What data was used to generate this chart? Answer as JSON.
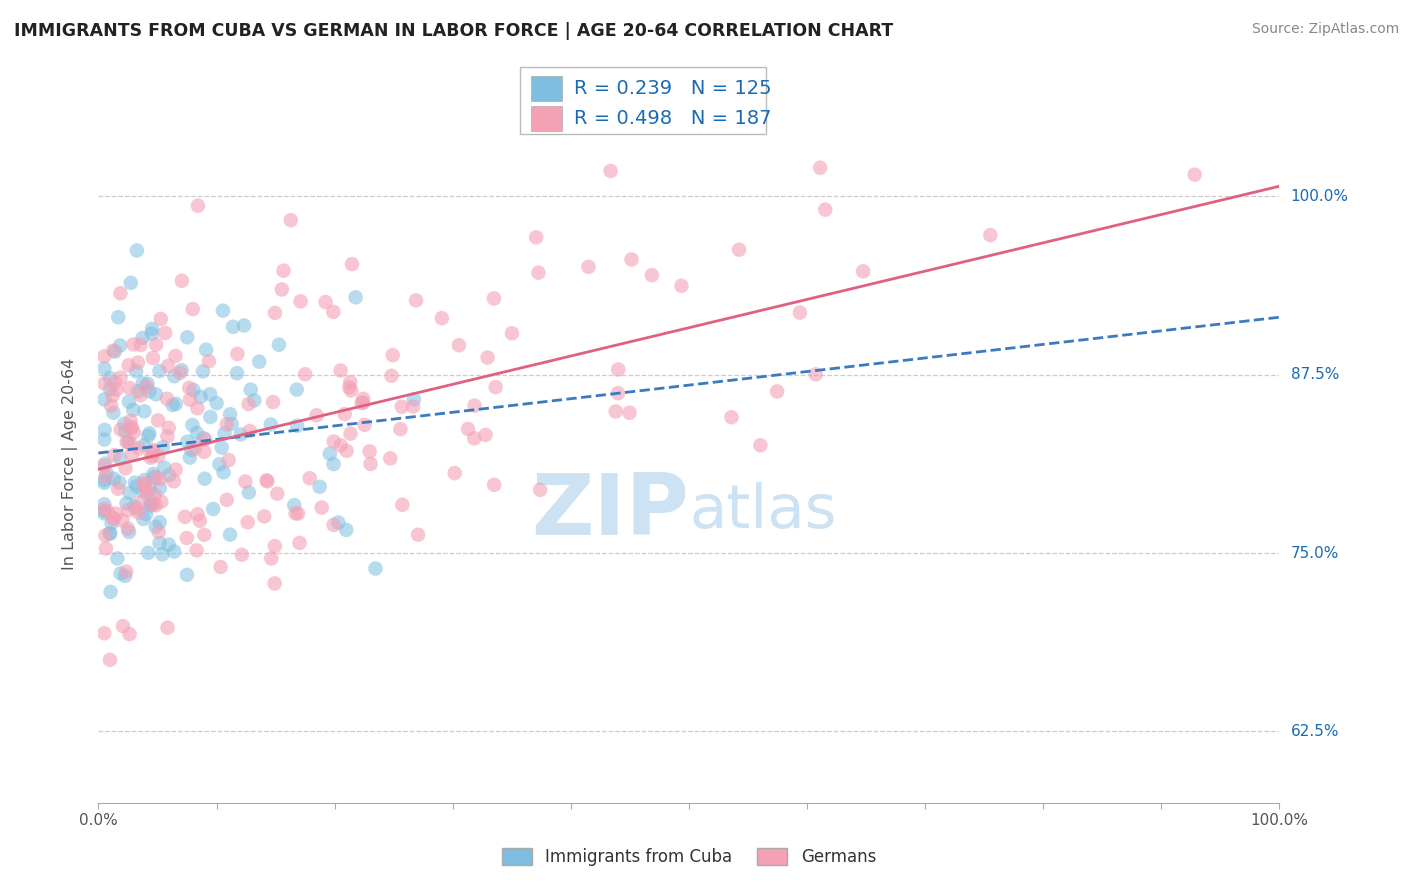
{
  "title": "IMMIGRANTS FROM CUBA VS GERMAN IN LABOR FORCE | AGE 20-64 CORRELATION CHART",
  "source": "Source: ZipAtlas.com",
  "ylabel": "In Labor Force | Age 20-64",
  "xlim": [
    0.0,
    1.0
  ],
  "ylim": [
    0.575,
    1.05
  ],
  "yticks": [
    0.625,
    0.75,
    0.875,
    1.0
  ],
  "ytick_labels": [
    "62.5%",
    "75.0%",
    "87.5%",
    "100.0%"
  ],
  "xticks": [
    0.0,
    0.1,
    0.2,
    0.3,
    0.4,
    0.5,
    0.6,
    0.7,
    0.8,
    0.9,
    1.0
  ],
  "xtick_label_left": "0.0%",
  "xtick_label_right": "100.0%",
  "legend_r1": "0.239",
  "legend_n1": "125",
  "legend_r2": "0.498",
  "legend_n2": "187",
  "r_cuba": 0.239,
  "n_cuba": 125,
  "r_german": 0.498,
  "n_german": 187,
  "color_cuba": "#7fbee0",
  "color_german": "#f4a0b5",
  "color_blue": "#1a6bb5",
  "color_trendline_cuba": "#3a7abf",
  "color_trendline_german": "#e06080",
  "watermark_zip": "ZIP",
  "watermark_atlas": "atlas",
  "watermark_color": "#c5ddf0",
  "background_color": "#ffffff",
  "grid_color": "#cccccc",
  "legend1_label": "Immigrants from Cuba",
  "legend2_label": "Germans",
  "title_color": "#222222",
  "axis_label_color": "#555555",
  "ytick_color": "#1a6bb5",
  "xtick_color": "#555555"
}
